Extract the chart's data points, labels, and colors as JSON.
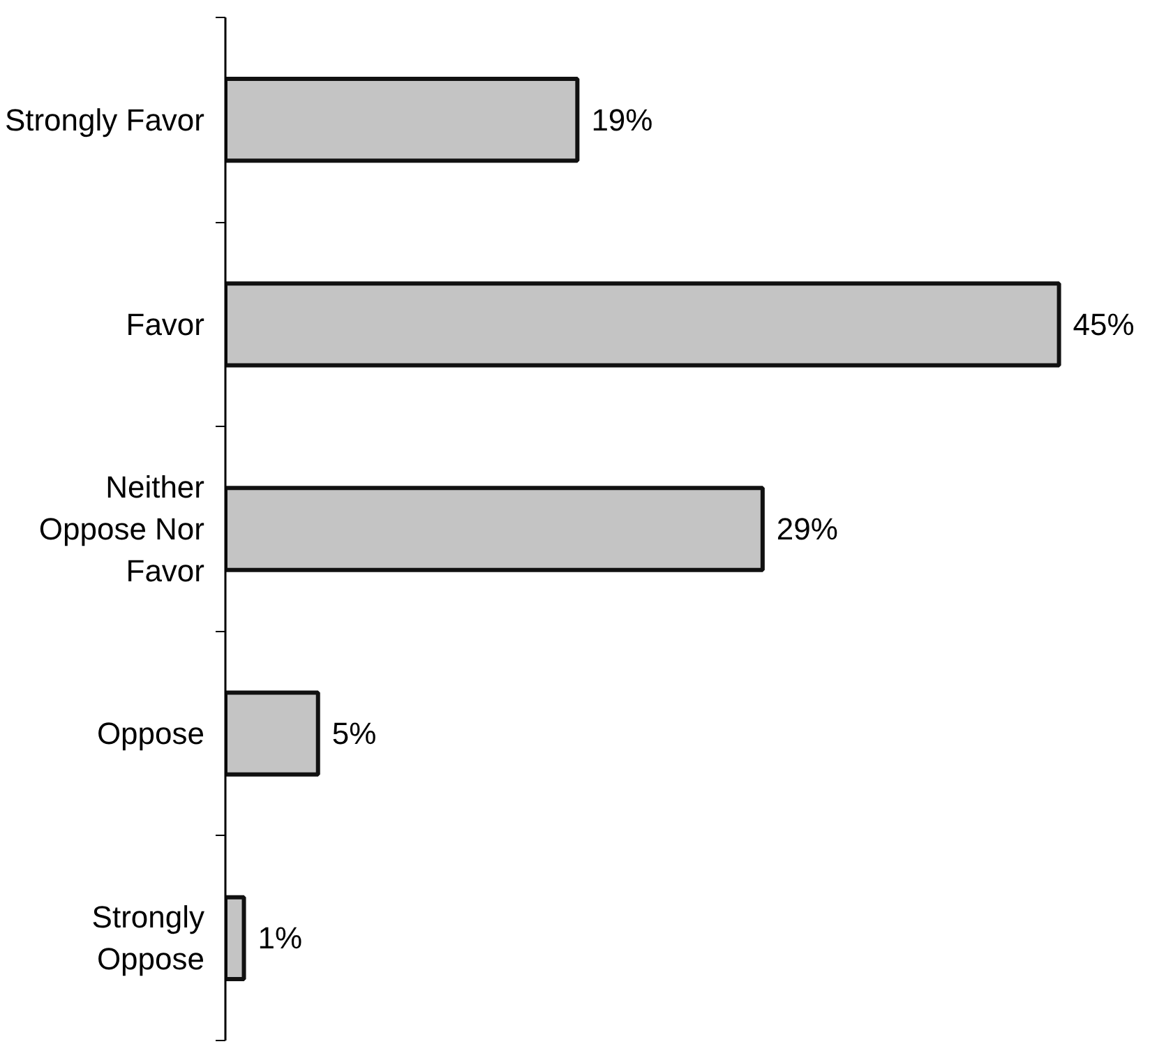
{
  "chart_data": {
    "type": "bar",
    "orientation": "horizontal",
    "categories": [
      "Strongly Favor",
      "Favor",
      "Neither\nOppose Nor\nFavor",
      "Oppose",
      "Strongly\nOppose"
    ],
    "values": [
      19,
      45,
      29,
      5,
      1
    ],
    "color": "#c4c4c4",
    "value_labels": [
      "19%",
      "45%",
      "29%",
      "5%",
      "1%"
    ],
    "grid": false
  }
}
